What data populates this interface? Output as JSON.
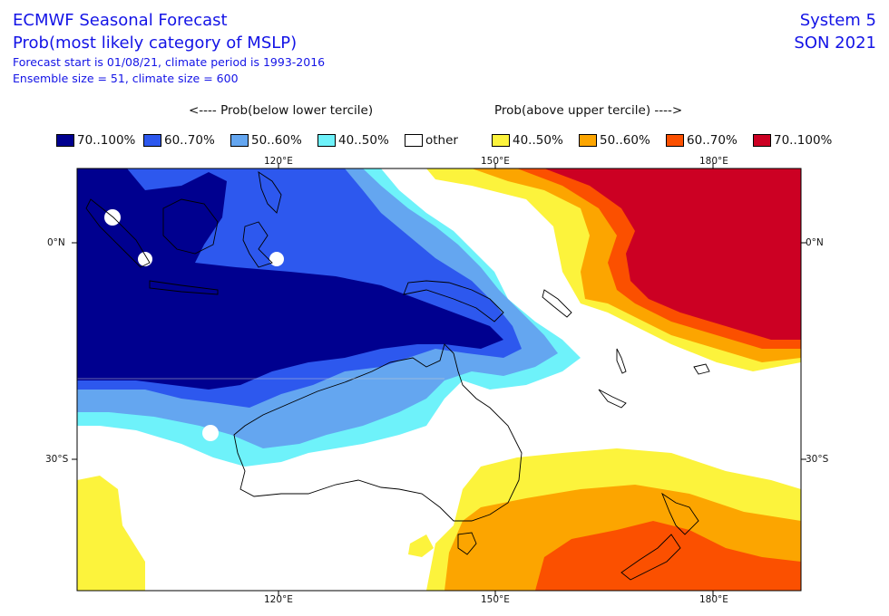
{
  "header": {
    "title": "ECMWF Seasonal Forecast",
    "subtitle": "Prob(most likely category of MSLP)",
    "line3": "Forecast start is 01/08/21, climate period is 1993-2016",
    "line4": "Ensemble size = 51, climate size = 600",
    "system": "System 5",
    "season": "SON 2021"
  },
  "legend": {
    "below_heading": "<---- Prob(below lower tercile)",
    "above_heading": "Prob(above upper tercile) ---->",
    "items": [
      {
        "label": "70..100%",
        "color": "#00008f"
      },
      {
        "label": "60..70%",
        "color": "#2d58ee"
      },
      {
        "label": "50..60%",
        "color": "#64a6f0"
      },
      {
        "label": "40..50%",
        "color": "#6ef2fa"
      },
      {
        "label": "other",
        "color": "#ffffff"
      },
      {
        "label": "40..50%",
        "color": "#fcf33c"
      },
      {
        "label": "50..60%",
        "color": "#fca500"
      },
      {
        "label": "60..70%",
        "color": "#fb5000"
      },
      {
        "label": "70..100%",
        "color": "#cc0023"
      }
    ]
  },
  "axes": {
    "lon_ticks": [
      "120°E",
      "150°E",
      "180°E"
    ],
    "lat_ticks": [
      "0°N",
      "30°S"
    ]
  }
}
